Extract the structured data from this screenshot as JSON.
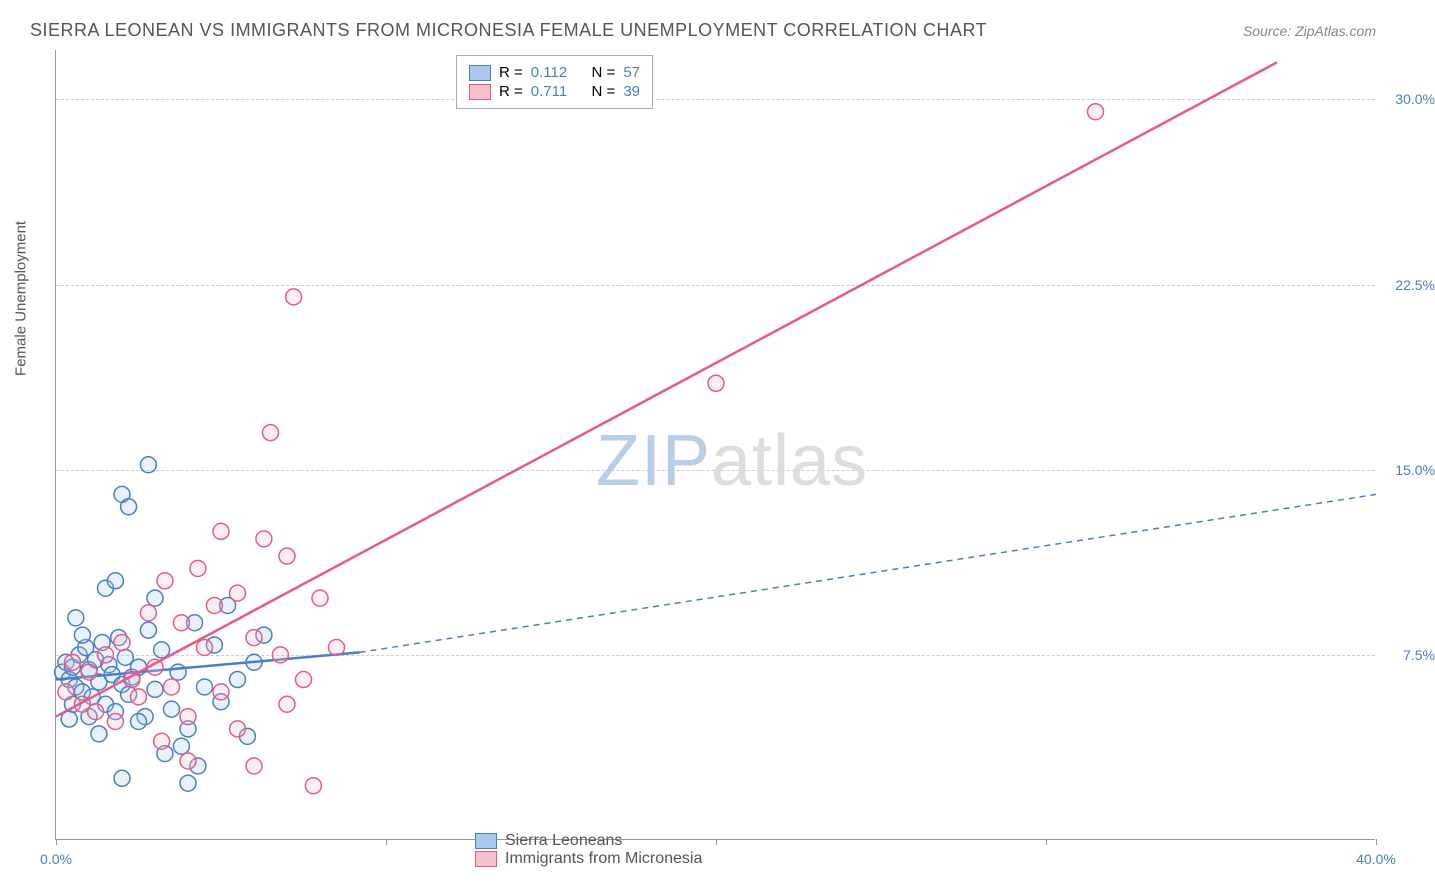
{
  "title": "SIERRA LEONEAN VS IMMIGRANTS FROM MICRONESIA FEMALE UNEMPLOYMENT CORRELATION CHART",
  "source": "Source: ZipAtlas.com",
  "watermark_part1": "ZIP",
  "watermark_part2": "atlas",
  "y_axis_label": "Female Unemployment",
  "chart": {
    "type": "scatter",
    "xlim": [
      0,
      40
    ],
    "ylim": [
      0,
      32
    ],
    "x_ticks": [
      0,
      20,
      40
    ],
    "x_tick_labels": [
      "0.0%",
      "",
      "40.0%"
    ],
    "x_minor_ticks": [
      10,
      30
    ],
    "y_ticks": [
      7.5,
      15.0,
      22.5,
      30.0
    ],
    "y_tick_labels": [
      "7.5%",
      "15.0%",
      "22.5%",
      "30.0%"
    ],
    "background_color": "#ffffff",
    "grid_color": "#cccccc",
    "axis_color": "#999999",
    "tick_label_color": "#4a7ec9",
    "marker_radius": 8,
    "marker_stroke_width": 1.5,
    "marker_fill_opacity": 0.25
  },
  "series": [
    {
      "name": "Sierra Leoneans",
      "color_fill": "#a8c8ec",
      "color_stroke": "#4a7ec9",
      "R_label": "R =",
      "R": "0.112",
      "N_label": "N =",
      "N": "57",
      "regression": {
        "x1": 0,
        "y1": 6.5,
        "x2": 9.2,
        "y2": 7.6,
        "dash_x2": 40,
        "dash_y2": 14.0
      },
      "line_width": 2.5,
      "points": [
        [
          0.2,
          6.8
        ],
        [
          0.3,
          7.2
        ],
        [
          0.4,
          6.5
        ],
        [
          0.5,
          7.0
        ],
        [
          0.6,
          6.2
        ],
        [
          0.7,
          7.5
        ],
        [
          0.8,
          6.0
        ],
        [
          0.9,
          7.8
        ],
        [
          1.0,
          6.9
        ],
        [
          1.1,
          5.8
        ],
        [
          1.2,
          7.3
        ],
        [
          1.3,
          6.4
        ],
        [
          1.4,
          8.0
        ],
        [
          1.5,
          5.5
        ],
        [
          1.6,
          7.1
        ],
        [
          1.7,
          6.7
        ],
        [
          1.8,
          5.2
        ],
        [
          1.9,
          8.2
        ],
        [
          2.0,
          6.3
        ],
        [
          2.1,
          7.4
        ],
        [
          2.2,
          5.9
        ],
        [
          2.3,
          6.6
        ],
        [
          2.5,
          7.0
        ],
        [
          2.7,
          5.0
        ],
        [
          2.8,
          8.5
        ],
        [
          3.0,
          6.1
        ],
        [
          3.2,
          7.7
        ],
        [
          3.5,
          5.3
        ],
        [
          3.7,
          6.8
        ],
        [
          4.0,
          4.5
        ],
        [
          4.2,
          8.8
        ],
        [
          4.5,
          6.2
        ],
        [
          4.8,
          7.9
        ],
        [
          5.0,
          5.6
        ],
        [
          5.2,
          9.5
        ],
        [
          5.5,
          6.5
        ],
        [
          5.8,
          4.2
        ],
        [
          6.0,
          7.2
        ],
        [
          6.3,
          8.3
        ],
        [
          3.8,
          3.8
        ],
        [
          4.3,
          3.0
        ],
        [
          1.5,
          10.2
        ],
        [
          2.0,
          14.0
        ],
        [
          2.8,
          15.2
        ],
        [
          2.2,
          13.5
        ],
        [
          2.5,
          4.8
        ],
        [
          3.0,
          9.8
        ],
        [
          3.3,
          3.5
        ],
        [
          1.0,
          5.0
        ],
        [
          0.5,
          5.5
        ],
        [
          1.3,
          4.3
        ],
        [
          1.8,
          10.5
        ],
        [
          0.8,
          8.3
        ],
        [
          0.4,
          4.9
        ],
        [
          0.6,
          9.0
        ],
        [
          2.0,
          2.5
        ],
        [
          4.0,
          2.3
        ]
      ]
    },
    {
      "name": "Immigrants from Micronesia",
      "color_fill": "#f5c0cd",
      "color_stroke": "#e85a85",
      "R_label": "R =",
      "R": "0.711",
      "N_label": "N =",
      "N": "39",
      "regression": {
        "x1": 0,
        "y1": 5.0,
        "x2": 37,
        "y2": 31.5
      },
      "line_width": 2.5,
      "points": [
        [
          0.3,
          6.0
        ],
        [
          0.5,
          7.2
        ],
        [
          0.8,
          5.5
        ],
        [
          1.0,
          6.8
        ],
        [
          1.2,
          5.2
        ],
        [
          1.5,
          7.5
        ],
        [
          1.8,
          4.8
        ],
        [
          2.0,
          8.0
        ],
        [
          2.3,
          6.5
        ],
        [
          2.5,
          5.8
        ],
        [
          2.8,
          9.2
        ],
        [
          3.0,
          7.0
        ],
        [
          3.3,
          10.5
        ],
        [
          3.5,
          6.2
        ],
        [
          3.8,
          8.8
        ],
        [
          4.0,
          5.0
        ],
        [
          4.3,
          11.0
        ],
        [
          4.5,
          7.8
        ],
        [
          4.8,
          9.5
        ],
        [
          5.0,
          6.0
        ],
        [
          5.5,
          10.0
        ],
        [
          6.0,
          8.2
        ],
        [
          6.3,
          12.2
        ],
        [
          6.8,
          7.5
        ],
        [
          7.0,
          11.5
        ],
        [
          7.5,
          6.5
        ],
        [
          8.0,
          9.8
        ],
        [
          8.5,
          7.8
        ],
        [
          5.0,
          12.5
        ],
        [
          6.5,
          16.5
        ],
        [
          7.2,
          22.0
        ],
        [
          3.2,
          4.0
        ],
        [
          4.0,
          3.2
        ],
        [
          5.5,
          4.5
        ],
        [
          6.0,
          3.0
        ],
        [
          7.0,
          5.5
        ],
        [
          7.8,
          2.2
        ],
        [
          20.0,
          18.5
        ],
        [
          31.5,
          29.5
        ]
      ]
    }
  ]
}
